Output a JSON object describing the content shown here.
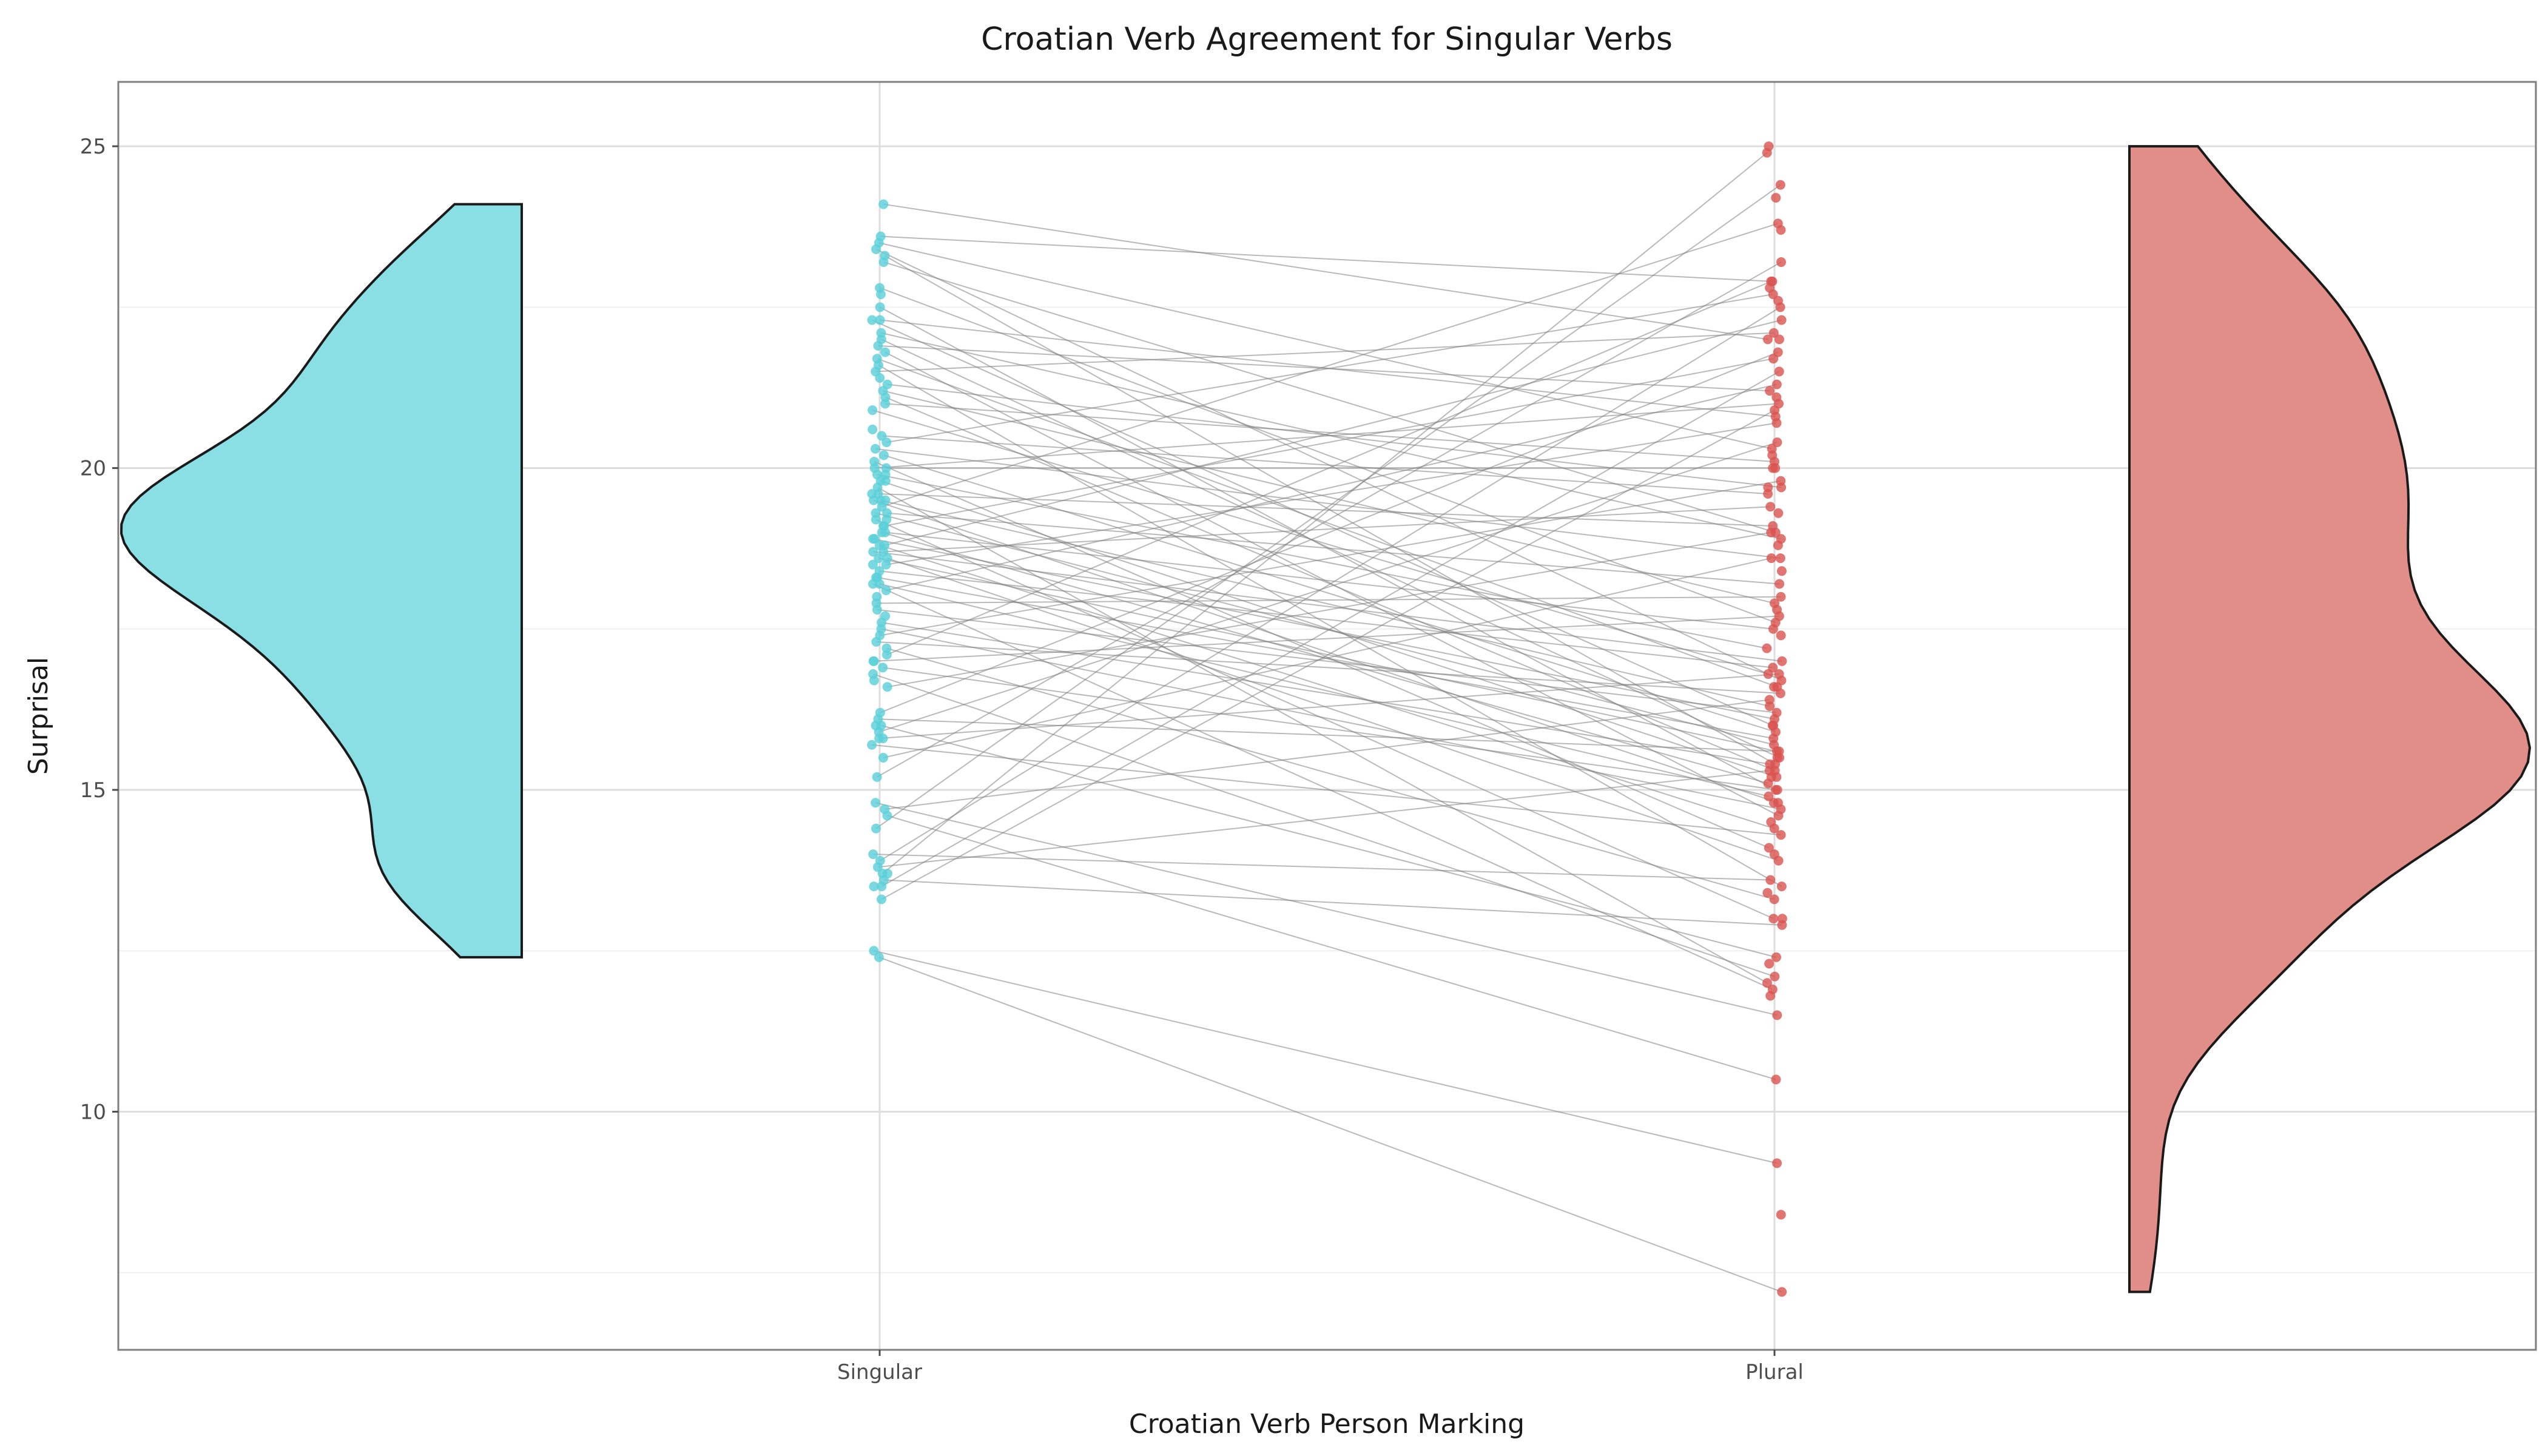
{
  "chart_data": {
    "type": "scatter",
    "title": "Croatian Verb Agreement for Singular Verbs",
    "xlabel": "Croatian Verb Person Marking",
    "ylabel": "Surprisal",
    "categories": [
      "Singular",
      "Plural"
    ],
    "ylim": [
      6.3,
      26.0
    ],
    "yticks": [
      10,
      15,
      20,
      25
    ],
    "grid": true,
    "legend": "none",
    "colors": {
      "singular": "#59d0d8",
      "plural": "#d9534f",
      "violin_singular": "#8adfe4",
      "violin_plural": "#e28e88",
      "lines": "#808080"
    },
    "pairs": [
      [
        24.1,
        22.0
      ],
      [
        23.6,
        22.9
      ],
      [
        23.5,
        20.3
      ],
      [
        23.4,
        16.7
      ],
      [
        23.3,
        15.4
      ],
      [
        23.2,
        19.0
      ],
      [
        22.8,
        17.6
      ],
      [
        22.5,
        15.0
      ],
      [
        22.3,
        20.8
      ],
      [
        22.3,
        16.0
      ],
      [
        22.1,
        18.9
      ],
      [
        22.0,
        15.5
      ],
      [
        21.9,
        21.2
      ],
      [
        21.8,
        14.6
      ],
      [
        21.7,
        16.6
      ],
      [
        21.6,
        13.5
      ],
      [
        21.5,
        22.1
      ],
      [
        21.3,
        19.7
      ],
      [
        21.2,
        17.9
      ],
      [
        21.1,
        15.3
      ],
      [
        21.0,
        20.1
      ],
      [
        20.9,
        16.8
      ],
      [
        20.5,
        19.6
      ],
      [
        20.4,
        22.7
      ],
      [
        20.3,
        18.6
      ],
      [
        20.2,
        15.9
      ],
      [
        20.1,
        14.1
      ],
      [
        20.0,
        20.0
      ],
      [
        20.0,
        21.0
      ],
      [
        19.9,
        17.2
      ],
      [
        19.8,
        15.2
      ],
      [
        19.7,
        12.0
      ],
      [
        19.6,
        19.1
      ],
      [
        19.5,
        16.3
      ],
      [
        19.5,
        14.8
      ],
      [
        19.4,
        23.8
      ],
      [
        19.3,
        18.2
      ],
      [
        19.3,
        15.7
      ],
      [
        19.2,
        13.0
      ],
      [
        19.1,
        21.7
      ],
      [
        19.0,
        17.5
      ],
      [
        19.0,
        15.1
      ],
      [
        18.9,
        16.1
      ],
      [
        18.8,
        14.4
      ],
      [
        18.8,
        22.3
      ],
      [
        18.7,
        19.4
      ],
      [
        18.7,
        17.0
      ],
      [
        18.6,
        15.6
      ],
      [
        18.6,
        13.9
      ],
      [
        18.5,
        20.7
      ],
      [
        18.4,
        16.9
      ],
      [
        18.3,
        15.8
      ],
      [
        18.2,
        14.9
      ],
      [
        18.2,
        11.9
      ],
      [
        18.1,
        21.3
      ],
      [
        17.9,
        18.0
      ],
      [
        17.8,
        16.2
      ],
      [
        17.6,
        15.4
      ],
      [
        17.5,
        14.7
      ],
      [
        17.4,
        19.8
      ],
      [
        17.3,
        16.5
      ],
      [
        17.2,
        13.3
      ],
      [
        17.1,
        22.9
      ],
      [
        17.0,
        17.7
      ],
      [
        16.9,
        15.0
      ],
      [
        16.8,
        12.1
      ],
      [
        16.6,
        19.0
      ],
      [
        16.2,
        21.8
      ],
      [
        16.1,
        15.6
      ],
      [
        16.0,
        12.4
      ],
      [
        15.9,
        20.4
      ],
      [
        15.8,
        16.8
      ],
      [
        15.7,
        14.3
      ],
      [
        15.5,
        18.6
      ],
      [
        15.2,
        23.2
      ],
      [
        14.8,
        11.5
      ],
      [
        14.7,
        16.4
      ],
      [
        14.6,
        10.5
      ],
      [
        14.4,
        24.4
      ],
      [
        14.0,
        13.6
      ],
      [
        13.9,
        22.5
      ],
      [
        13.8,
        15.3
      ],
      [
        13.7,
        24.9
      ],
      [
        13.6,
        12.9
      ],
      [
        13.5,
        21.5
      ],
      [
        13.3,
        20.9
      ],
      [
        12.5,
        9.2
      ],
      [
        12.4,
        7.2
      ]
    ],
    "singular_extra": [
      22.7,
      21.4,
      20.6,
      19.9,
      19.8,
      19.6,
      19.5,
      19.2,
      19.1,
      18.9,
      18.5,
      18.3,
      18.0,
      17.7,
      17.0,
      16.7,
      16.0,
      15.8,
      13.7,
      13.5
    ],
    "plural_extra": [
      25.0,
      24.2,
      23.7,
      22.8,
      22.6,
      22.0,
      21.1,
      20.2,
      20.0,
      19.7,
      19.3,
      18.8,
      18.4,
      17.8,
      17.4,
      16.6,
      16.0,
      15.5,
      15.2,
      14.8,
      14.5,
      14.0,
      13.4,
      13.0,
      12.3,
      11.8,
      8.4
    ]
  }
}
